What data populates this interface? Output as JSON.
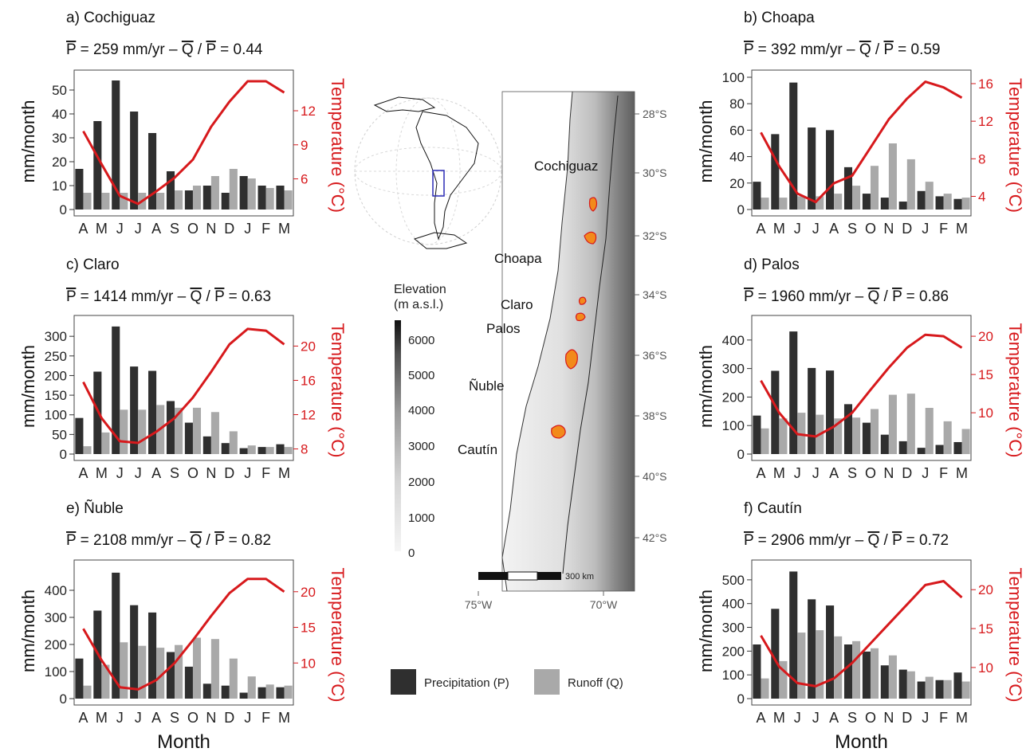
{
  "colors": {
    "precip": "#2f2f2f",
    "runoff": "#a9a9a9",
    "temp": "#d7191c",
    "frame": "#444444",
    "region_box": "#2b2bb5",
    "catchment_fill": "#f28a1b",
    "catchment_stroke": "#d7191c"
  },
  "legend": {
    "precip": "Precipitation (P)",
    "runoff": "Runoff (Q)"
  },
  "labels": {
    "ylabel": "mm/month",
    "y2label": "Temperature (°C)",
    "xlabel": "Month",
    "months": [
      "A",
      "M",
      "J",
      "J",
      "A",
      "S",
      "O",
      "N",
      "D",
      "J",
      "F",
      "M"
    ],
    "p_symbol": "P",
    "q_symbol": "Q",
    "dash": "–",
    "unit": "mm/yr"
  },
  "map": {
    "elevation_title_1": "Elevation",
    "elevation_title_2": "(m a.s.l.)",
    "elevation_ticks": [
      "6000",
      "5000",
      "4000",
      "3000",
      "2000",
      "1000",
      "0"
    ],
    "lat_labels": [
      "28°S",
      "30°S",
      "32°S",
      "34°S",
      "36°S",
      "38°S",
      "40°S",
      "42°S"
    ],
    "lon_labels": [
      "75°W",
      "70°W"
    ],
    "scale_label": "300 km",
    "catchment_names": [
      "Cochiguaz",
      "Choapa",
      "Claro",
      "Palos",
      "Ñuble",
      "Cautín"
    ]
  },
  "chart_data": [
    {
      "type": "bar",
      "panel": "a) Cochiguaz",
      "p_mean": "259",
      "qp_ratio": "0.44",
      "categories": [
        "A",
        "M",
        "J",
        "J",
        "A",
        "S",
        "O",
        "N",
        "D",
        "J",
        "F",
        "M"
      ],
      "series": [
        {
          "name": "Precipitation (P)",
          "values": [
            17,
            37,
            54,
            41,
            32,
            16,
            8,
            10,
            7,
            14,
            10,
            10
          ]
        },
        {
          "name": "Runoff (Q)",
          "values": [
            7,
            7,
            7,
            7,
            7,
            8,
            10,
            14,
            17,
            13,
            9,
            8
          ]
        }
      ],
      "temperature": [
        10.2,
        7.3,
        4.5,
        3.8,
        4.9,
        6.1,
        7.7,
        10.6,
        12.8,
        14.6,
        14.6,
        13.6
      ],
      "ylim": [
        0,
        57
      ],
      "yticks": [
        0,
        10,
        20,
        30,
        40,
        50
      ],
      "y2lim": [
        3.3,
        15.3
      ],
      "y2ticks": [
        6,
        9,
        12
      ],
      "xlabel": ""
    },
    {
      "type": "bar",
      "panel": "b) Choapa",
      "p_mean": "392",
      "qp_ratio": "0.59",
      "categories": [
        "A",
        "M",
        "J",
        "J",
        "A",
        "S",
        "O",
        "N",
        "D",
        "J",
        "F",
        "M"
      ],
      "series": [
        {
          "name": "Precipitation (P)",
          "values": [
            21,
            57,
            96,
            62,
            60,
            32,
            12,
            9,
            6,
            14,
            10,
            8
          ]
        },
        {
          "name": "Runoff (Q)",
          "values": [
            9,
            9,
            10,
            10,
            12,
            18,
            33,
            50,
            38,
            21,
            12,
            9
          ]
        }
      ],
      "temperature": [
        10.8,
        7.2,
        4.3,
        3.4,
        5.4,
        6.2,
        9.2,
        12.2,
        14.4,
        16.2,
        15.6,
        14.5
      ],
      "ylim": [
        0,
        103
      ],
      "yticks": [
        0,
        20,
        40,
        60,
        80,
        100
      ],
      "y2lim": [
        2.6,
        17.1
      ],
      "y2ticks": [
        4,
        8,
        12,
        16
      ],
      "xlabel": ""
    },
    {
      "type": "bar",
      "panel": "c) Claro",
      "p_mean": "1414",
      "qp_ratio": "0.63",
      "categories": [
        "A",
        "M",
        "J",
        "J",
        "A",
        "S",
        "O",
        "N",
        "D",
        "J",
        "F",
        "M"
      ],
      "series": [
        {
          "name": "Precipitation (P)",
          "values": [
            92,
            210,
            325,
            223,
            212,
            135,
            80,
            45,
            28,
            15,
            18,
            25
          ]
        },
        {
          "name": "Runoff (Q)",
          "values": [
            20,
            55,
            113,
            113,
            125,
            118,
            118,
            107,
            58,
            22,
            18,
            18
          ]
        }
      ],
      "temperature": [
        15.8,
        11.6,
        8.9,
        8.7,
        10.0,
        11.6,
        14.0,
        17.0,
        20.2,
        22.0,
        21.8,
        20.2
      ],
      "ylim": [
        0,
        345
      ],
      "yticks": [
        0,
        50,
        100,
        150,
        200,
        250,
        300
      ],
      "y2lim": [
        7.4,
        23.2
      ],
      "y2ticks": [
        8,
        12,
        16,
        20
      ],
      "xlabel": ""
    },
    {
      "type": "bar",
      "panel": "d) Palos",
      "p_mean": "1960",
      "qp_ratio": "0.86",
      "categories": [
        "A",
        "M",
        "J",
        "J",
        "A",
        "S",
        "O",
        "N",
        "D",
        "J",
        "F",
        "M"
      ],
      "series": [
        {
          "name": "Precipitation (P)",
          "values": [
            135,
            292,
            430,
            302,
            293,
            175,
            110,
            68,
            45,
            22,
            32,
            42
          ]
        },
        {
          "name": "Runoff (Q)",
          "values": [
            90,
            125,
            145,
            138,
            125,
            128,
            158,
            208,
            212,
            162,
            115,
            88
          ]
        }
      ],
      "temperature": [
        14.2,
        10.0,
        7.2,
        6.9,
        8.2,
        10.0,
        13.0,
        15.9,
        18.5,
        20.2,
        20.0,
        18.5
      ],
      "ylim": [
        0,
        475
      ],
      "yticks": [
        0,
        100,
        200,
        300,
        400
      ],
      "y2lim": [
        4.6,
        22.3
      ],
      "y2ticks": [
        10,
        15,
        20
      ],
      "xlabel": ""
    },
    {
      "type": "bar",
      "panel": "e) Ñuble",
      "p_mean": "2108",
      "qp_ratio": "0.82",
      "categories": [
        "A",
        "M",
        "J",
        "J",
        "A",
        "S",
        "O",
        "N",
        "D",
        "J",
        "F",
        "M"
      ],
      "series": [
        {
          "name": "Precipitation (P)",
          "values": [
            148,
            325,
            465,
            345,
            318,
            172,
            118,
            55,
            48,
            22,
            42,
            42
          ]
        },
        {
          "name": "Runoff (Q)",
          "values": [
            48,
            125,
            208,
            195,
            188,
            198,
            225,
            220,
            148,
            82,
            52,
            48
          ]
        }
      ],
      "temperature": [
        14.8,
        10.4,
        6.6,
        6.3,
        7.6,
        10.0,
        13.2,
        16.6,
        19.8,
        21.8,
        21.8,
        20.0
      ],
      "ylim": [
        0,
        500
      ],
      "yticks": [
        0,
        100,
        200,
        300,
        400
      ],
      "y2lim": [
        5.0,
        24.0
      ],
      "y2ticks": [
        10,
        15,
        20
      ],
      "xlabel": "Month"
    },
    {
      "type": "bar",
      "panel": "f) Cautín",
      "p_mean": "2906",
      "qp_ratio": "0.72",
      "categories": [
        "A",
        "M",
        "J",
        "J",
        "A",
        "S",
        "O",
        "N",
        "D",
        "J",
        "F",
        "M"
      ],
      "series": [
        {
          "name": "Precipitation (P)",
          "values": [
            228,
            378,
            535,
            418,
            392,
            228,
            198,
            140,
            122,
            72,
            78,
            110
          ]
        },
        {
          "name": "Runoff (Q)",
          "values": [
            85,
            158,
            278,
            288,
            262,
            242,
            212,
            182,
            115,
            92,
            78,
            72
          ]
        }
      ],
      "temperature": [
        14.1,
        10.1,
        8.0,
        7.6,
        8.6,
        10.6,
        13.1,
        15.6,
        18.1,
        20.6,
        21.1,
        19.0
      ],
      "ylim": [
        0,
        570
      ],
      "yticks": [
        0,
        100,
        200,
        300,
        400,
        500
      ],
      "y2lim": [
        6.0,
        23.4
      ],
      "y2ticks": [
        10,
        15,
        20
      ],
      "xlabel": "Month"
    }
  ]
}
